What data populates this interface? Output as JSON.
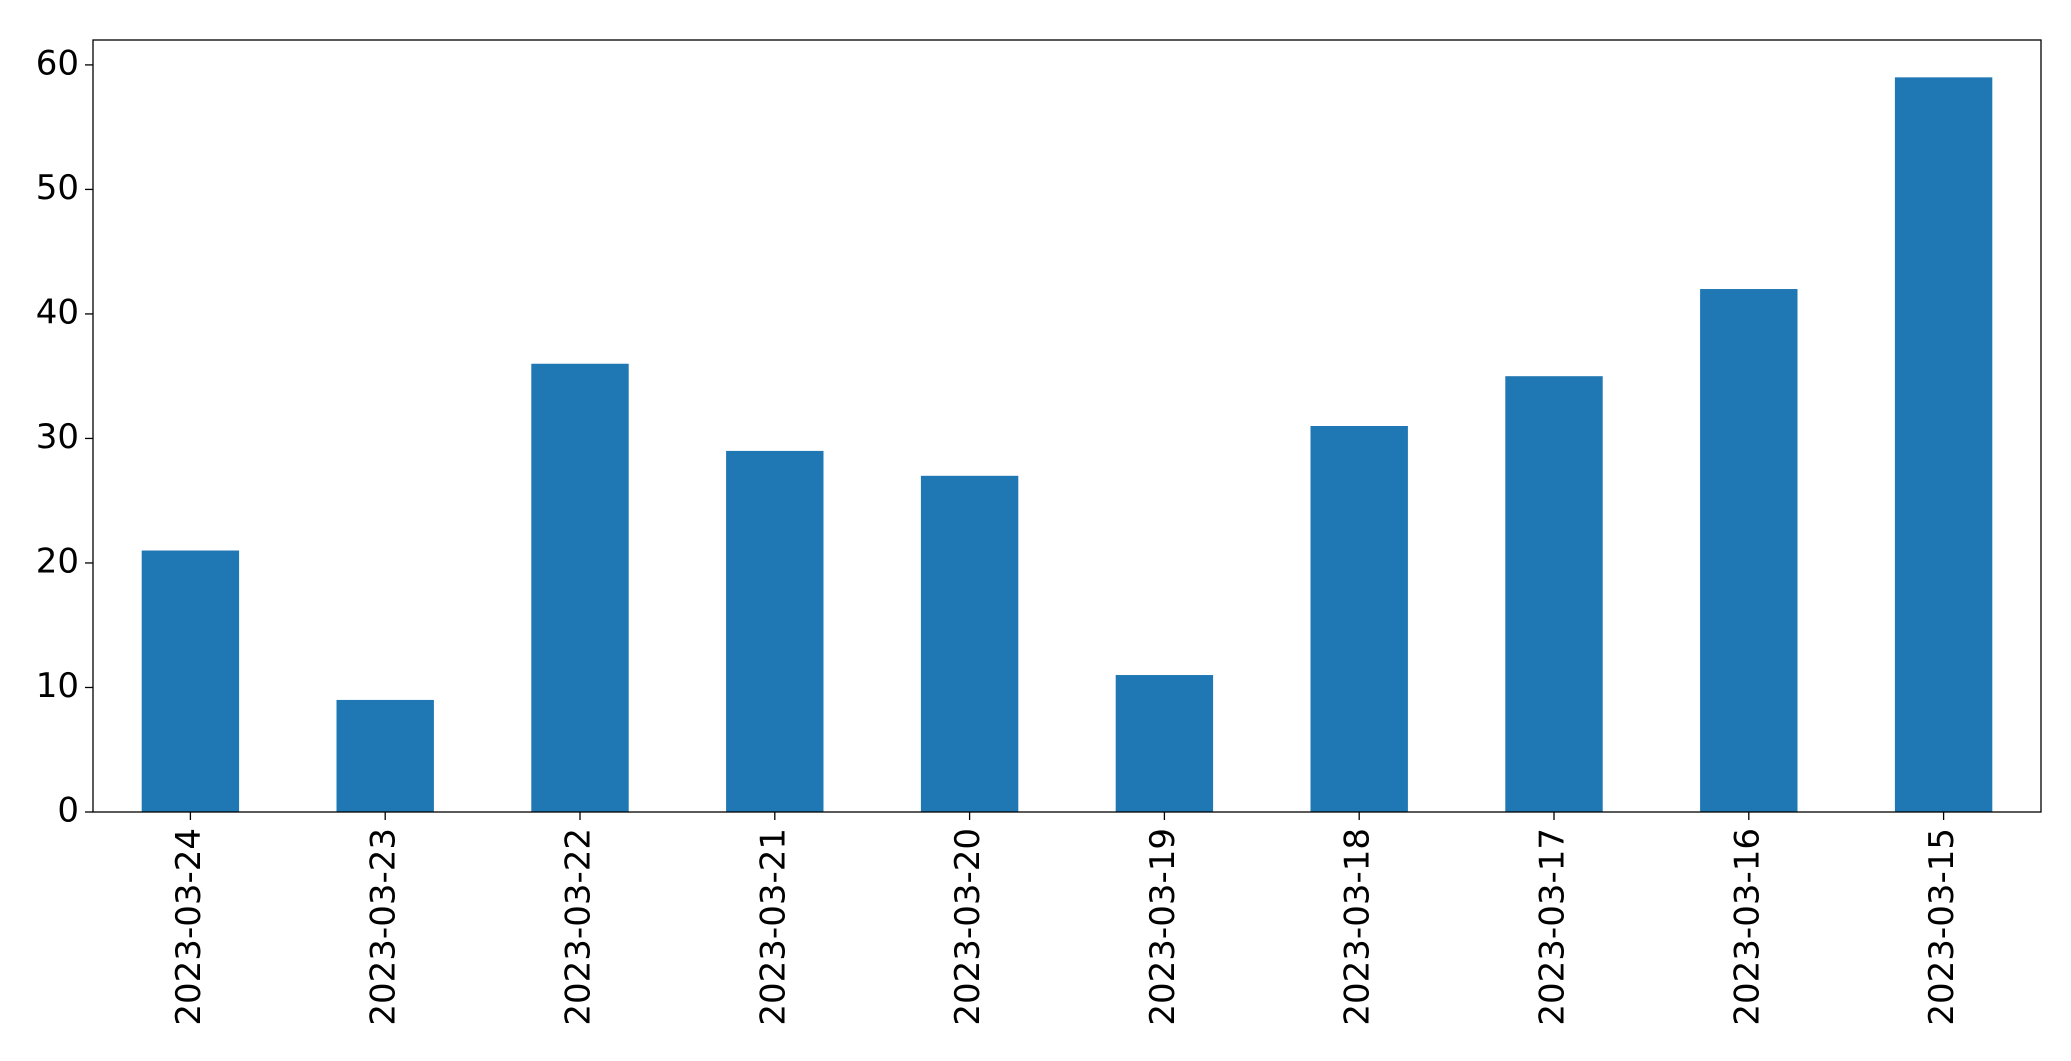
{
  "chart_data": {
    "type": "bar",
    "categories": [
      "2023-03-24",
      "2023-03-23",
      "2023-03-22",
      "2023-03-21",
      "2023-03-20",
      "2023-03-19",
      "2023-03-18",
      "2023-03-17",
      "2023-03-16",
      "2023-03-15"
    ],
    "values": [
      21,
      9,
      36,
      29,
      27,
      11,
      31,
      35,
      42,
      59
    ],
    "color": "#1f77b4",
    "ylim": [
      0,
      62
    ],
    "yticks": [
      0,
      10,
      20,
      30,
      40,
      50,
      60
    ],
    "grid": false
  }
}
